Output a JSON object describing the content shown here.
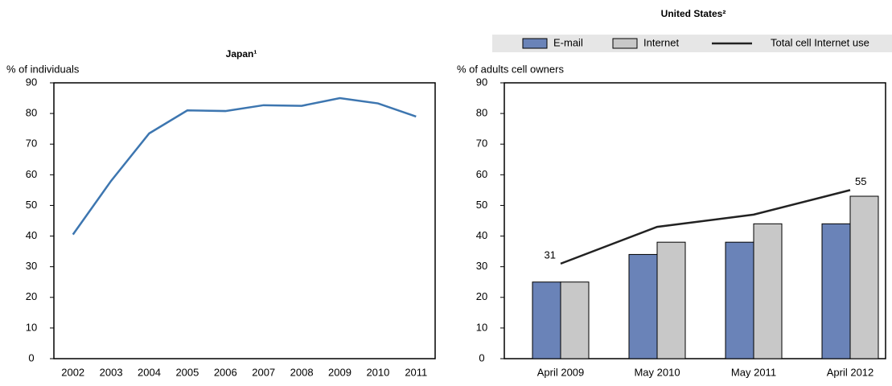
{
  "chart_data": [
    {
      "type": "line",
      "title": "Japan¹",
      "y_label": "% of individuals",
      "categories": [
        "2002",
        "2003",
        "2004",
        "2005",
        "2006",
        "2007",
        "2008",
        "2009",
        "2010",
        "2011"
      ],
      "series": [
        {
          "name": "Japan",
          "color": "#3d76b0",
          "values": [
            40.5,
            58,
            73.5,
            81,
            80.8,
            82.7,
            82.5,
            85,
            83.3,
            79
          ]
        }
      ],
      "ylim": [
        0,
        90
      ],
      "yticks": [
        0,
        10,
        20,
        30,
        40,
        50,
        60,
        70,
        80,
        90
      ]
    },
    {
      "type": "bar",
      "title": "United States²",
      "y_label": "% of adults cell owners",
      "categories": [
        "April 2009",
        "May 2010",
        "May 2011",
        "April 2012"
      ],
      "series": [
        {
          "name": "E-mail",
          "color": "#6a83b8",
          "values": [
            25,
            34,
            38,
            44
          ]
        },
        {
          "name": "Internet",
          "color": "#c8c8c8",
          "values": [
            25,
            38,
            44,
            53
          ]
        },
        {
          "name": "Total cell Internet use",
          "color": "#222222",
          "type": "line",
          "values": [
            31,
            43,
            47,
            55
          ],
          "value_labels": [
            "31",
            null,
            null,
            "55"
          ]
        }
      ],
      "ylim": [
        0,
        90
      ],
      "yticks": [
        0,
        10,
        20,
        30,
        40,
        50,
        60,
        70,
        80,
        90
      ],
      "legend": "top"
    }
  ]
}
